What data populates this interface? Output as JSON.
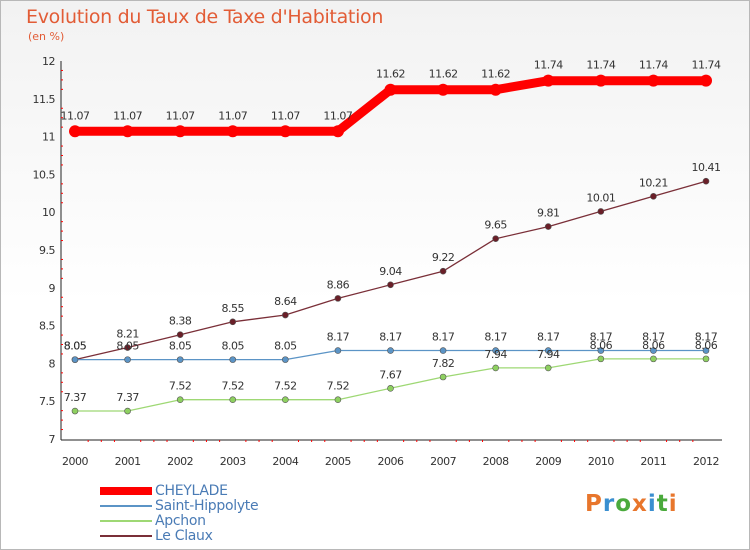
{
  "header": {
    "title": "Evolution du Taux de Taxe d'Habitation",
    "subtitle": "(en %)"
  },
  "logo": {
    "text": "Proxiti",
    "colors": [
      "#e8762c",
      "#3a8fd0",
      "#4aaa3c",
      "#e8762c",
      "#3a8fd0",
      "#4aaa3c",
      "#e8762c"
    ]
  },
  "chart_data": {
    "type": "line",
    "title": "Evolution du Taux de Taxe d'Habitation",
    "subtitle": "(en %)",
    "x": [
      2000,
      2001,
      2002,
      2003,
      2004,
      2005,
      2006,
      2007,
      2008,
      2009,
      2010,
      2011,
      2012
    ],
    "ylim": [
      7,
      12
    ],
    "yticks": [
      7,
      7.5,
      8,
      8.5,
      9,
      9.5,
      10,
      10.5,
      11,
      11.5,
      12
    ],
    "grid": "none",
    "legend_position": "bottom-left",
    "series": [
      {
        "name": "CHEYLADE",
        "color": "#ff0000",
        "values": [
          11.07,
          11.07,
          11.07,
          11.07,
          11.07,
          11.07,
          11.62,
          11.62,
          11.62,
          11.74,
          11.74,
          11.74,
          11.74
        ],
        "labels": [
          "11.07",
          "11.07",
          "11.07",
          "11.07",
          "11.07",
          "11.07",
          "11.62",
          "11.62",
          "11.62",
          "11.74",
          "11.74",
          "11.74",
          "11.74"
        ]
      },
      {
        "name": "Saint-Hippolyte",
        "color": "#5b94c6",
        "values": [
          8.05,
          8.05,
          8.05,
          8.05,
          8.05,
          8.17,
          8.17,
          8.17,
          8.17,
          8.17,
          8.17,
          8.17,
          8.17
        ],
        "labels": [
          "8.05",
          "8.05",
          "8.05",
          "8.05",
          "8.05",
          "8.17",
          "8.17",
          "8.17",
          "8.17",
          "8.17",
          "8.17",
          "8.17",
          "8.17"
        ]
      },
      {
        "name": "Apchon",
        "color": "#9ed874",
        "values": [
          7.37,
          7.37,
          7.52,
          7.52,
          7.52,
          7.52,
          7.67,
          7.82,
          7.94,
          7.94,
          8.06,
          8.06,
          8.06
        ],
        "labels": [
          "7.37",
          "7.37",
          "7.52",
          "7.52",
          "7.52",
          "7.52",
          "7.67",
          "7.82",
          "7.94",
          "7.94",
          "8.06",
          "8.06",
          "8.06"
        ]
      },
      {
        "name": "Le Claux",
        "color": "#7a2f38",
        "values": [
          8.05,
          8.21,
          8.38,
          8.55,
          8.64,
          8.86,
          9.04,
          9.22,
          9.65,
          9.81,
          10.01,
          10.21,
          10.41
        ],
        "labels": [
          "8.05",
          "8.21",
          "8.38",
          "8.55",
          "8.64",
          "8.86",
          "9.04",
          "9.22",
          "9.65",
          "9.81",
          "10.01",
          "10.21",
          "10.41"
        ]
      }
    ]
  }
}
